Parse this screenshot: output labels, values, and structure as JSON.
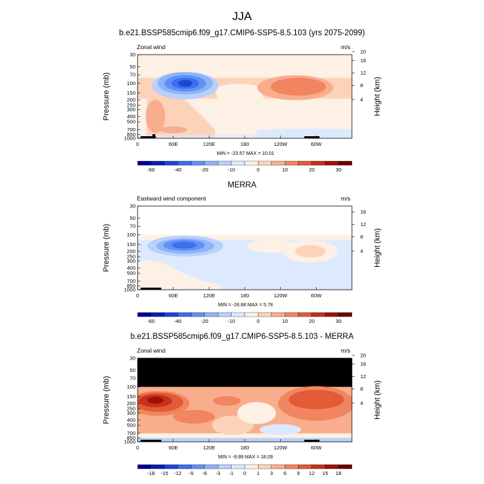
{
  "title": "JJA",
  "panels": [
    {
      "id": "model",
      "title": "b.e21.BSSP585cmip6.f09_g17.CMIP6-SSP5-8.5.103 (yrs 2075-2099)",
      "left_label": "Zonal wind",
      "units": "m/s",
      "ylabel": "Pressure (mb)",
      "y2label": "Height (km)",
      "stats": "MIN = -23.57  MAX =  10.01",
      "yticks": [
        "30",
        "50",
        "70",
        "100",
        "150",
        "200",
        "250",
        "300",
        "400",
        "500",
        "700",
        "850",
        "1000"
      ],
      "xticks": [
        "0",
        "60E",
        "120E",
        "180",
        "120W",
        "60W"
      ],
      "height_ticks": [
        "20",
        "16",
        "12",
        "8",
        "4"
      ],
      "colorbar_labels": [
        "-60",
        "-40",
        "-20",
        "-10",
        "0",
        "10",
        "20",
        "30"
      ],
      "colorbar_colors": [
        "#00008f",
        "#0a1fb5",
        "#1d45d6",
        "#3b6fec",
        "#5f91f5",
        "#8db3f9",
        "#b8d1fb",
        "#dde9fd",
        "#fdf0e4",
        "#fcd2b9",
        "#f8ae8c",
        "#f1855f",
        "#e25a36",
        "#c83018",
        "#a01008",
        "#6e0000"
      ]
    },
    {
      "id": "obs",
      "title": "MERRA",
      "left_label": "Eastward wind component",
      "units": "m/s",
      "ylabel": "Pressure (mb)",
      "y2label": "Height (km)",
      "stats": "MIN = -26.88  MAX =  5.78",
      "yticks": [
        "30",
        "50",
        "70",
        "100",
        "150",
        "200",
        "250",
        "300",
        "400",
        "500",
        "700",
        "850",
        "1000"
      ],
      "xticks": [
        "0",
        "60E",
        "120E",
        "180",
        "120W",
        "60W"
      ],
      "height_ticks": [
        "16",
        "12",
        "8",
        "4"
      ],
      "colorbar_labels": [
        "-60",
        "-40",
        "-20",
        "-10",
        "0",
        "10",
        "20",
        "30"
      ],
      "colorbar_colors": [
        "#00008f",
        "#0a1fb5",
        "#1d45d6",
        "#3b6fec",
        "#5f91f5",
        "#8db3f9",
        "#b8d1fb",
        "#dde9fd",
        "#fdf0e4",
        "#fcd2b9",
        "#f8ae8c",
        "#f1855f",
        "#e25a36",
        "#c83018",
        "#a01008",
        "#6e0000"
      ]
    },
    {
      "id": "diff",
      "title": "b.e21.BSSP585cmip6.f09_g17.CMIP6-SSP5-8.5.103 - MERRA",
      "left_label": "Zonal wind",
      "units": "m/s",
      "ylabel": "Pressure (mb)",
      "y2label": "Height (km)",
      "stats": "MIN = -9.89  MAX = 18.09",
      "yticks": [
        "30",
        "50",
        "70",
        "100",
        "150",
        "200",
        "250",
        "300",
        "400",
        "500",
        "700",
        "850",
        "1000"
      ],
      "xticks": [
        "0",
        "60E",
        "120E",
        "180",
        "120W",
        "60W"
      ],
      "height_ticks": [
        "20",
        "16",
        "12",
        "8",
        "4"
      ],
      "colorbar_labels": [
        "-18",
        "-15",
        "-12",
        "-9",
        "-6",
        "-3",
        "-1",
        "0",
        "1",
        "3",
        "6",
        "9",
        "12",
        "15",
        "18"
      ],
      "colorbar_colors": [
        "#00008f",
        "#0a1fb5",
        "#1d45d6",
        "#3b6fec",
        "#5f91f5",
        "#8db3f9",
        "#b8d1fb",
        "#dde9fd",
        "#fdf0e4",
        "#fcd2b9",
        "#f8ae8c",
        "#f1855f",
        "#e25a36",
        "#c83018",
        "#a01008",
        "#6e0000"
      ]
    }
  ],
  "chart_data": [
    {
      "type": "heatmap",
      "title": "b.e21.BSSP585cmip6.f09_g17.CMIP6-SSP5-8.5.103 (yrs 2075-2099)",
      "variable": "Zonal wind",
      "units": "m/s",
      "xlabel": "",
      "ylabel": "Pressure (mb)",
      "y2label": "Height (km)",
      "xlim": [
        0,
        360
      ],
      "ylim": [
        1000,
        30
      ],
      "y_scale": "log",
      "min": -23.57,
      "max": 10.01,
      "levels": [
        -60,
        -50,
        -40,
        -30,
        -20,
        -15,
        -10,
        -5,
        0,
        5,
        10,
        15,
        20,
        25,
        30
      ],
      "features": [
        {
          "description": "easterly jet core",
          "lon": 80,
          "pressure": 100,
          "value": -23.57
        },
        {
          "description": "westerly maximum",
          "lon": 260,
          "pressure": 110,
          "value": 10.01
        }
      ]
    },
    {
      "type": "heatmap",
      "title": "MERRA",
      "variable": "Eastward wind component",
      "units": "m/s",
      "xlabel": "",
      "ylabel": "Pressure (mb)",
      "y2label": "Height (km)",
      "xlim": [
        0,
        360
      ],
      "ylim": [
        1000,
        30
      ],
      "y_scale": "log",
      "min": -26.88,
      "max": 5.78,
      "levels": [
        -60,
        -50,
        -40,
        -30,
        -20,
        -15,
        -10,
        -5,
        0,
        5,
        10,
        15,
        20,
        25,
        30
      ],
      "features": [
        {
          "description": "easterly jet core",
          "lon": 80,
          "pressure": 150,
          "value": -26.88
        }
      ]
    },
    {
      "type": "heatmap",
      "title": "b.e21.BSSP585cmip6.f09_g17.CMIP6-SSP5-8.5.103 - MERRA",
      "variable": "Zonal wind",
      "units": "m/s",
      "xlabel": "",
      "ylabel": "Pressure (mb)",
      "y2label": "Height (km)",
      "xlim": [
        0,
        360
      ],
      "ylim": [
        1000,
        30
      ],
      "y_scale": "log",
      "min": -9.89,
      "max": 18.09,
      "levels": [
        -18,
        -15,
        -12,
        -9,
        -6,
        -3,
        -1,
        0,
        1,
        3,
        6,
        9,
        12,
        15,
        18
      ],
      "features": [
        {
          "description": "positive difference maximum",
          "lon": 30,
          "pressure": 200,
          "value": 18.09
        },
        {
          "description": "missing data above 100 mb",
          "pressure_range": [
            30,
            100
          ]
        }
      ]
    }
  ]
}
